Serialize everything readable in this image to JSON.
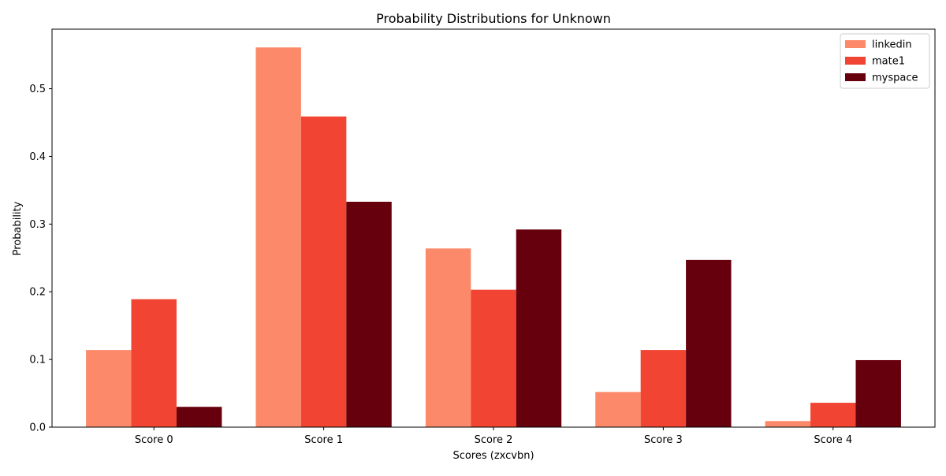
{
  "chart_data": {
    "type": "bar",
    "title": "Probability Distributions for Unknown",
    "xlabel": "Scores (zxcvbn)",
    "ylabel": "Probability",
    "categories": [
      "Score 0",
      "Score 1",
      "Score 2",
      "Score 3",
      "Score 4"
    ],
    "ylim": [
      0,
      0.588
    ],
    "yticks": [
      0.0,
      0.1,
      0.2,
      0.3,
      0.4,
      0.5
    ],
    "ytick_labels": [
      "0.0",
      "0.1",
      "0.2",
      "0.3",
      "0.4",
      "0.5"
    ],
    "grid": false,
    "legend_position": "top-right",
    "series": [
      {
        "name": "linkedin",
        "color": "#fc8a6a",
        "values": [
          0.114,
          0.561,
          0.264,
          0.052,
          0.009
        ]
      },
      {
        "name": "mate1",
        "color": "#f14432",
        "values": [
          0.189,
          0.459,
          0.203,
          0.114,
          0.036
        ]
      },
      {
        "name": "myspace",
        "color": "#67000d",
        "values": [
          0.03,
          0.333,
          0.292,
          0.247,
          0.099
        ]
      }
    ]
  }
}
